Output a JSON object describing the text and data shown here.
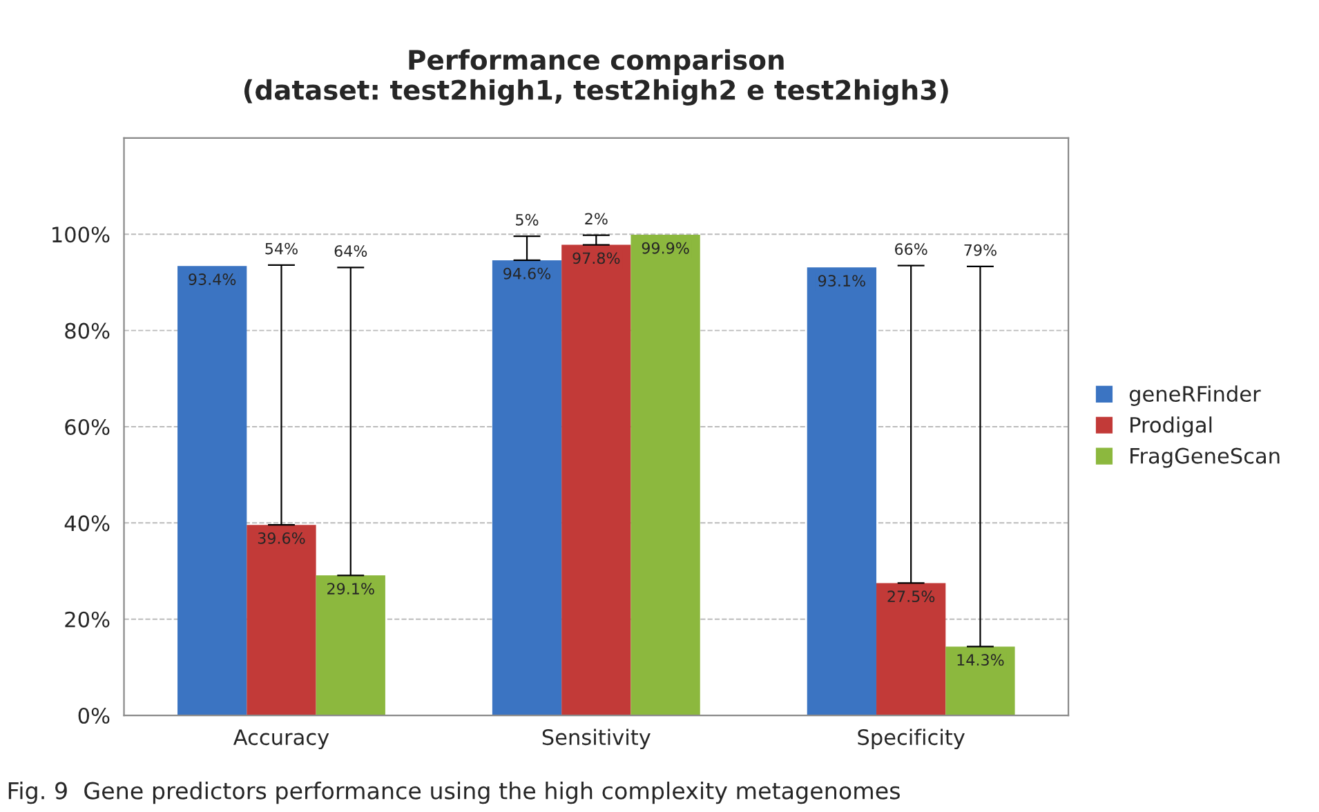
{
  "chart_data": {
    "type": "bar",
    "title": "Performance comparison\n(dataset: test2high1, test2high2 e test2high3)",
    "categories": [
      "Accuracy",
      "Sensitivity",
      "Specificity"
    ],
    "series": [
      {
        "name": "geneRFinder",
        "color": "#3b74c2",
        "values": [
          93.4,
          94.6,
          93.1
        ],
        "value_labels": [
          "93.4%",
          "94.6%",
          "93.1%"
        ],
        "errors": [
          null,
          [
            94.6,
            99.6
          ],
          null
        ]
      },
      {
        "name": "Prodigal",
        "color": "#c23a38",
        "values": [
          39.6,
          97.8,
          27.5
        ],
        "value_labels": [
          "39.6%",
          "97.8%",
          "27.5%"
        ],
        "errors": [
          [
            39.6,
            93.6
          ],
          [
            97.8,
            99.8
          ],
          [
            27.5,
            93.5
          ]
        ]
      },
      {
        "name": "FragGeneScan",
        "color": "#8cb83e",
        "values": [
          29.1,
          99.9,
          14.3
        ],
        "value_labels": [
          "29.1%",
          "99.9%",
          "14.3%"
        ],
        "errors": [
          [
            29.1,
            93.1
          ],
          null,
          [
            14.3,
            93.3
          ]
        ]
      }
    ],
    "ylim": [
      0,
      120
    ],
    "yticks": [
      {
        "value": 0,
        "label": "0%"
      },
      {
        "value": 20,
        "label": "20%"
      },
      {
        "value": 40,
        "label": "40%"
      },
      {
        "value": 60,
        "label": "60%"
      },
      {
        "value": 80,
        "label": "80%"
      },
      {
        "value": 100,
        "label": "100%"
      }
    ],
    "grid": "y",
    "legend": "right",
    "annotations": [
      "54%",
      "64%",
      "5%",
      "2%",
      "66%",
      "79%",
      "Fig. 9  Gene predictors performance using the high complexity metagenomes"
    ]
  }
}
